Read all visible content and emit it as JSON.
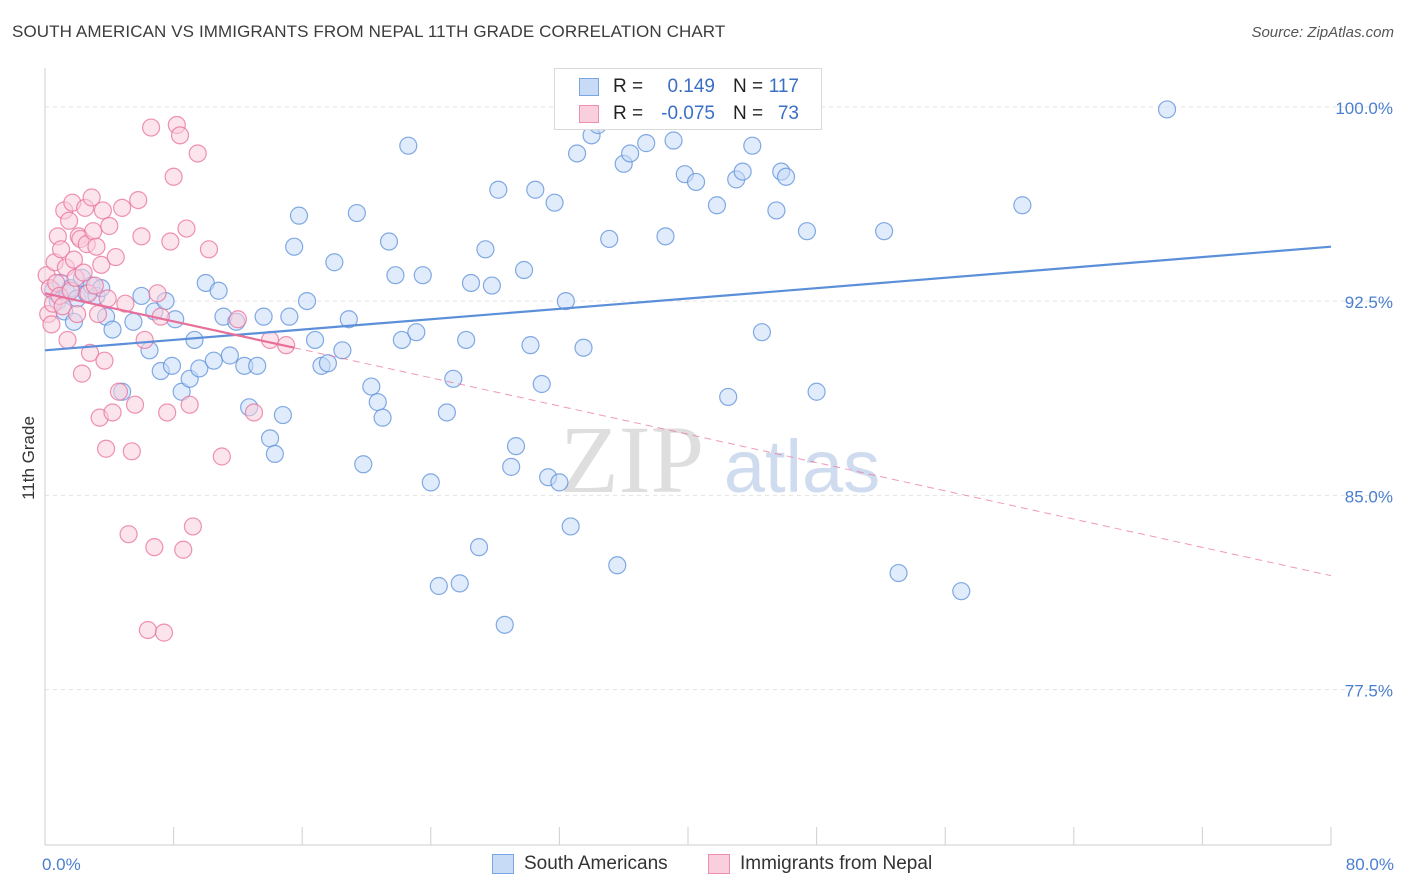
{
  "title": "SOUTH AMERICAN VS IMMIGRANTS FROM NEPAL 11TH GRADE CORRELATION CHART",
  "source": "Source: ZipAtlas.com",
  "watermark": {
    "zip": "ZIP",
    "atlas": "atlas"
  },
  "legend": {
    "r_label": "R =",
    "n_label": "N =",
    "rows": [
      {
        "r": "0.149",
        "n": "117",
        "color": "#7aa6e6",
        "fill": "#c7dbf7"
      },
      {
        "r": "-0.075",
        "n": "73",
        "color": "#ee8fb0",
        "fill": "#f9cedd"
      }
    ]
  },
  "chart_data": {
    "type": "scatter",
    "xlabel": "",
    "ylabel": "11th Grade",
    "xlim": [
      0,
      80
    ],
    "ylim": [
      71.5,
      101.5
    ],
    "x_ticks": [
      0,
      8,
      16,
      24,
      32,
      40,
      48,
      56,
      64,
      72,
      80
    ],
    "x_tick_labels": [
      {
        "value": 0,
        "label": "0.0%"
      },
      {
        "value": 80,
        "label": "80.0%"
      }
    ],
    "y_ticks": [
      {
        "value": 100,
        "label": "100.0%"
      },
      {
        "value": 92.5,
        "label": "92.5%"
      },
      {
        "value": 85,
        "label": "85.0%"
      },
      {
        "value": 77.5,
        "label": "77.5%"
      }
    ],
    "grid": true,
    "legend_position": "top-center",
    "series": [
      {
        "name": "South Americans",
        "color": "#5b8fd9",
        "fill": "#c7dbf7",
        "trend": {
          "x": [
            0,
            80
          ],
          "y": [
            90.6,
            94.6
          ],
          "style": "solid"
        },
        "points": [
          [
            0.5,
            92.9
          ],
          [
            0.8,
            92.5
          ],
          [
            1.0,
            93.2
          ],
          [
            1.2,
            92.1
          ],
          [
            1.4,
            92.8
          ],
          [
            1.6,
            93.0
          ],
          [
            1.8,
            91.7
          ],
          [
            2.0,
            92.6
          ],
          [
            2.3,
            93.4
          ],
          [
            2.6,
            92.8
          ],
          [
            2.9,
            93.1
          ],
          [
            3.2,
            92.7
          ],
          [
            3.5,
            93.0
          ],
          [
            3.8,
            91.9
          ],
          [
            4.2,
            91.4
          ],
          [
            4.8,
            89.0
          ],
          [
            5.5,
            91.7
          ],
          [
            6.0,
            92.7
          ],
          [
            6.5,
            90.6
          ],
          [
            6.8,
            92.1
          ],
          [
            7.2,
            89.8
          ],
          [
            7.5,
            92.5
          ],
          [
            7.9,
            90.0
          ],
          [
            8.1,
            91.8
          ],
          [
            8.5,
            89.0
          ],
          [
            9.0,
            89.5
          ],
          [
            9.3,
            91.0
          ],
          [
            9.6,
            89.9
          ],
          [
            10.0,
            93.2
          ],
          [
            10.5,
            90.2
          ],
          [
            10.8,
            92.9
          ],
          [
            11.1,
            91.9
          ],
          [
            11.5,
            90.4
          ],
          [
            11.9,
            91.7
          ],
          [
            12.4,
            90.0
          ],
          [
            12.7,
            88.4
          ],
          [
            13.2,
            90.0
          ],
          [
            13.6,
            91.9
          ],
          [
            14.0,
            87.2
          ],
          [
            14.3,
            86.6
          ],
          [
            14.8,
            88.1
          ],
          [
            15.2,
            91.9
          ],
          [
            15.5,
            94.6
          ],
          [
            15.8,
            95.8
          ],
          [
            16.3,
            92.5
          ],
          [
            16.8,
            91.0
          ],
          [
            17.2,
            90.0
          ],
          [
            17.6,
            90.1
          ],
          [
            18.0,
            94.0
          ],
          [
            18.5,
            90.6
          ],
          [
            18.9,
            91.8
          ],
          [
            19.4,
            95.9
          ],
          [
            19.8,
            86.2
          ],
          [
            20.3,
            89.2
          ],
          [
            20.7,
            88.6
          ],
          [
            21.0,
            88.0
          ],
          [
            21.4,
            94.8
          ],
          [
            21.8,
            93.5
          ],
          [
            22.2,
            91.0
          ],
          [
            22.6,
            98.5
          ],
          [
            23.1,
            91.3
          ],
          [
            23.5,
            93.5
          ],
          [
            24.0,
            85.5
          ],
          [
            24.5,
            81.5
          ],
          [
            25.0,
            88.2
          ],
          [
            25.4,
            89.5
          ],
          [
            25.8,
            81.6
          ],
          [
            26.2,
            91.0
          ],
          [
            26.5,
            93.2
          ],
          [
            27.0,
            83.0
          ],
          [
            27.4,
            94.5
          ],
          [
            27.8,
            93.1
          ],
          [
            28.2,
            96.8
          ],
          [
            28.6,
            80.0
          ],
          [
            29.0,
            86.1
          ],
          [
            29.3,
            86.9
          ],
          [
            29.8,
            93.7
          ],
          [
            30.2,
            90.8
          ],
          [
            30.5,
            96.8
          ],
          [
            30.9,
            89.3
          ],
          [
            31.3,
            85.7
          ],
          [
            31.7,
            96.3
          ],
          [
            32.0,
            85.5
          ],
          [
            32.4,
            92.5
          ],
          [
            32.7,
            83.8
          ],
          [
            33.1,
            98.2
          ],
          [
            33.5,
            90.7
          ],
          [
            34.0,
            98.9
          ],
          [
            34.4,
            99.3
          ],
          [
            35.1,
            94.9
          ],
          [
            35.6,
            82.3
          ],
          [
            36.0,
            97.8
          ],
          [
            36.4,
            98.2
          ],
          [
            36.9,
            99.8
          ],
          [
            37.4,
            98.6
          ],
          [
            38.6,
            95.0
          ],
          [
            39.1,
            98.7
          ],
          [
            39.8,
            97.4
          ],
          [
            40.5,
            97.1
          ],
          [
            41.1,
            99.9
          ],
          [
            41.8,
            96.2
          ],
          [
            42.5,
            88.8
          ],
          [
            43.0,
            97.2
          ],
          [
            43.4,
            97.5
          ],
          [
            44.0,
            98.5
          ],
          [
            44.6,
            91.3
          ],
          [
            45.0,
            99.5
          ],
          [
            45.5,
            96.0
          ],
          [
            45.8,
            97.5
          ],
          [
            46.1,
            97.3
          ],
          [
            47.4,
            95.2
          ],
          [
            48.0,
            89.0
          ],
          [
            52.2,
            95.2
          ],
          [
            53.1,
            82.0
          ],
          [
            57.0,
            81.3
          ],
          [
            60.8,
            96.2
          ],
          [
            69.8,
            99.9
          ]
        ]
      },
      {
        "name": "Immigrants from Nepal",
        "color": "#e86f9a",
        "fill": "#f9cedd",
        "trend": {
          "x": [
            0,
            15.5
          ],
          "y": [
            92.8,
            90.7
          ],
          "style": "solid",
          "extended": {
            "x": [
              15.5,
              80
            ],
            "y": [
              90.7,
              81.9
            ],
            "style": "dashed"
          }
        },
        "points": [
          [
            0.1,
            93.5
          ],
          [
            0.2,
            92.0
          ],
          [
            0.3,
            93.0
          ],
          [
            0.4,
            91.6
          ],
          [
            0.5,
            92.4
          ],
          [
            0.6,
            94.0
          ],
          [
            0.7,
            93.2
          ],
          [
            0.8,
            95.0
          ],
          [
            0.9,
            92.7
          ],
          [
            1.0,
            94.5
          ],
          [
            1.1,
            92.3
          ],
          [
            1.2,
            96.0
          ],
          [
            1.3,
            93.8
          ],
          [
            1.4,
            91.0
          ],
          [
            1.5,
            95.6
          ],
          [
            1.6,
            92.9
          ],
          [
            1.7,
            96.3
          ],
          [
            1.8,
            94.1
          ],
          [
            1.9,
            93.4
          ],
          [
            2.0,
            92.0
          ],
          [
            2.1,
            95.0
          ],
          [
            2.2,
            94.9
          ],
          [
            2.3,
            89.7
          ],
          [
            2.4,
            93.6
          ],
          [
            2.5,
            96.1
          ],
          [
            2.6,
            94.7
          ],
          [
            2.7,
            92.8
          ],
          [
            2.8,
            90.5
          ],
          [
            2.9,
            96.5
          ],
          [
            3.0,
            95.2
          ],
          [
            3.1,
            93.1
          ],
          [
            3.2,
            94.6
          ],
          [
            3.3,
            92.0
          ],
          [
            3.4,
            88.0
          ],
          [
            3.5,
            93.9
          ],
          [
            3.6,
            96.0
          ],
          [
            3.7,
            90.2
          ],
          [
            3.8,
            86.8
          ],
          [
            3.9,
            92.6
          ],
          [
            4.0,
            95.4
          ],
          [
            4.2,
            88.2
          ],
          [
            4.4,
            94.2
          ],
          [
            4.6,
            89.0
          ],
          [
            4.8,
            96.1
          ],
          [
            5.0,
            92.4
          ],
          [
            5.2,
            83.5
          ],
          [
            5.4,
            86.7
          ],
          [
            5.6,
            88.5
          ],
          [
            5.8,
            96.4
          ],
          [
            6.0,
            95.0
          ],
          [
            6.2,
            91.0
          ],
          [
            6.4,
            79.8
          ],
          [
            6.6,
            99.2
          ],
          [
            6.8,
            83.0
          ],
          [
            7.0,
            92.8
          ],
          [
            7.2,
            91.9
          ],
          [
            7.4,
            79.7
          ],
          [
            7.6,
            88.2
          ],
          [
            7.8,
            94.8
          ],
          [
            8.0,
            97.3
          ],
          [
            8.2,
            99.3
          ],
          [
            8.4,
            98.9
          ],
          [
            8.6,
            82.9
          ],
          [
            8.8,
            95.3
          ],
          [
            9.0,
            88.5
          ],
          [
            9.2,
            83.8
          ],
          [
            9.5,
            98.2
          ],
          [
            10.2,
            94.5
          ],
          [
            11.0,
            86.5
          ],
          [
            12.0,
            91.8
          ],
          [
            13.0,
            88.2
          ],
          [
            14.0,
            91.0
          ],
          [
            15.0,
            90.8
          ]
        ]
      }
    ]
  }
}
